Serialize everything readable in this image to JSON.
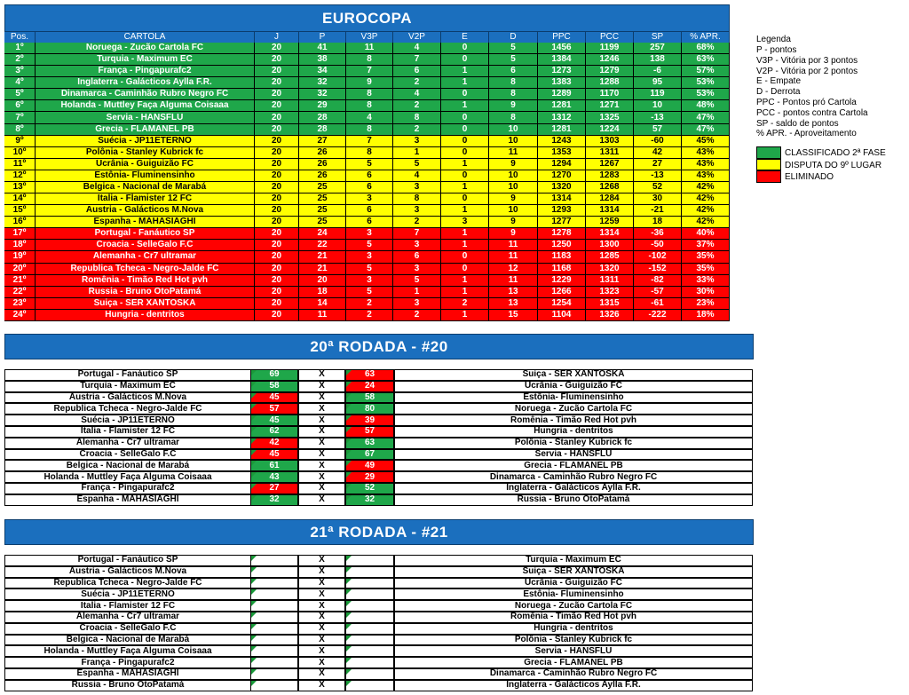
{
  "standings": {
    "title": "EUROCOPA",
    "columns": [
      "Pos.",
      "CARTOLA",
      "J",
      "P",
      "V3P",
      "V2P",
      "E",
      "D",
      "PPC",
      "PCC",
      "SP",
      "% APR."
    ],
    "rows": [
      {
        "color": "#1fa74a",
        "cells": [
          "1º",
          "Noruega - Zucão Cartola FC",
          20,
          41,
          11,
          4,
          0,
          5,
          1456,
          1199,
          257,
          "68%"
        ]
      },
      {
        "color": "#1fa74a",
        "cells": [
          "2º",
          "Turquia - Maximum EC",
          20,
          38,
          8,
          7,
          0,
          5,
          1384,
          1246,
          138,
          "63%"
        ]
      },
      {
        "color": "#1fa74a",
        "cells": [
          "3º",
          "França - Pingapurafc2",
          20,
          34,
          7,
          6,
          1,
          6,
          1273,
          1279,
          -6,
          "57%"
        ]
      },
      {
        "color": "#1fa74a",
        "cells": [
          "4º",
          "Inglaterra - Galácticos Aylla F.R.",
          20,
          32,
          9,
          2,
          1,
          8,
          1383,
          1288,
          95,
          "53%"
        ]
      },
      {
        "color": "#1fa74a",
        "cells": [
          "5º",
          "Dinamarca - Caminhão Rubro Negro FC",
          20,
          32,
          8,
          4,
          0,
          8,
          1289,
          1170,
          119,
          "53%"
        ]
      },
      {
        "color": "#1fa74a",
        "cells": [
          "6º",
          "Holanda - Muttley Faça Alguma Coisaaa",
          20,
          29,
          8,
          2,
          1,
          9,
          1281,
          1271,
          10,
          "48%"
        ]
      },
      {
        "color": "#1fa74a",
        "cells": [
          "7º",
          "Servia - HANSFLU",
          20,
          28,
          4,
          8,
          0,
          8,
          1312,
          1325,
          -13,
          "47%"
        ]
      },
      {
        "color": "#1fa74a",
        "cells": [
          "8º",
          "Grecia - FLAMANEL PB",
          20,
          28,
          8,
          2,
          0,
          10,
          1281,
          1224,
          57,
          "47%"
        ]
      },
      {
        "color": "#ffff00",
        "cells": [
          "9º",
          "Suécia - JP11ETERNO",
          20,
          27,
          7,
          3,
          0,
          10,
          1243,
          1303,
          -60,
          "45%"
        ]
      },
      {
        "color": "#ffff00",
        "cells": [
          "10º",
          "Polônia - Stanley Kubrick fc",
          20,
          26,
          8,
          1,
          0,
          11,
          1353,
          1311,
          42,
          "43%"
        ]
      },
      {
        "color": "#ffff00",
        "cells": [
          "11º",
          "Ucrânia - Guiguizão FC",
          20,
          26,
          5,
          5,
          1,
          9,
          1294,
          1267,
          27,
          "43%"
        ]
      },
      {
        "color": "#ffff00",
        "cells": [
          "12º",
          "Estônia- Fluminensinho",
          20,
          26,
          6,
          4,
          0,
          10,
          1270,
          1283,
          -13,
          "43%"
        ]
      },
      {
        "color": "#ffff00",
        "cells": [
          "13º",
          "Belgica - Nacional de Marabá",
          20,
          25,
          6,
          3,
          1,
          10,
          1320,
          1268,
          52,
          "42%"
        ]
      },
      {
        "color": "#ffff00",
        "cells": [
          "14º",
          "Italia - Flamister 12 FC",
          20,
          25,
          3,
          8,
          0,
          9,
          1314,
          1284,
          30,
          "42%"
        ]
      },
      {
        "color": "#ffff00",
        "cells": [
          "15º",
          "Austria - Galácticos M.Nova",
          20,
          25,
          6,
          3,
          1,
          10,
          1293,
          1314,
          -21,
          "42%"
        ]
      },
      {
        "color": "#ffff00",
        "cells": [
          "16º",
          "Espanha - MAHASIAGHI",
          20,
          25,
          6,
          2,
          3,
          9,
          1277,
          1259,
          18,
          "42%"
        ]
      },
      {
        "color": "#ff0000",
        "cells": [
          "17º",
          "Portugal - Fanáutico SP",
          20,
          24,
          3,
          7,
          1,
          9,
          1278,
          1314,
          -36,
          "40%"
        ]
      },
      {
        "color": "#ff0000",
        "cells": [
          "18º",
          "Croacia - SelleGalo F.C",
          20,
          22,
          5,
          3,
          1,
          11,
          1250,
          1300,
          -50,
          "37%"
        ]
      },
      {
        "color": "#ff0000",
        "cells": [
          "19º",
          "Alemanha - Cr7 ultramar",
          20,
          21,
          3,
          6,
          0,
          11,
          1183,
          1285,
          -102,
          "35%"
        ]
      },
      {
        "color": "#ff0000",
        "cells": [
          "20º",
          "Republica Tcheca - Negro-Jalde FC",
          20,
          21,
          5,
          3,
          0,
          12,
          1168,
          1320,
          -152,
          "35%"
        ]
      },
      {
        "color": "#ff0000",
        "cells": [
          "21º",
          "Romênia - Timão Red Hot pvh",
          20,
          20,
          3,
          5,
          1,
          11,
          1229,
          1311,
          -82,
          "33%"
        ]
      },
      {
        "color": "#ff0000",
        "cells": [
          "22º",
          "Russia - Bruno OtoPatamá",
          20,
          18,
          5,
          1,
          1,
          13,
          1266,
          1323,
          -57,
          "30%"
        ]
      },
      {
        "color": "#ff0000",
        "cells": [
          "23º",
          "Suiça - SER XANTOSKA",
          20,
          14,
          2,
          3,
          2,
          13,
          1254,
          1315,
          -61,
          "23%"
        ]
      },
      {
        "color": "#ff0000",
        "cells": [
          "24º",
          "Hungria - dentritos",
          20,
          11,
          2,
          2,
          1,
          15,
          1104,
          1326,
          -222,
          "18%"
        ]
      }
    ]
  },
  "legend": {
    "title": "Legenda",
    "items": [
      "P - pontos",
      "V3P - Vitória por 3 pontos",
      "V2P - Vitória por 2 pontos",
      "E - Empate",
      "D - Derrota",
      "PPC - Pontos pró Cartola",
      "PCC - pontos contra Cartola",
      "SP - saldo de pontos",
      "% APR. - Aproveitamento"
    ],
    "zones": [
      {
        "label": "CLASSIFICADO 2ª FASE",
        "color": "#1fa74a"
      },
      {
        "label": "DISPUTA DO 9º LUGAR",
        "color": "#ffff00"
      },
      {
        "label": "ELIMINADO",
        "color": "#ff0000"
      }
    ]
  },
  "rounds": [
    {
      "title": "20ª RODADA - #20",
      "separator": "X",
      "matches": [
        {
          "home": "Portugal - Fanáutico SP",
          "home_score": 69,
          "away_score": 63,
          "away": "Suiça - SER XANTOSKA"
        },
        {
          "home": "Turquia - Maximum EC",
          "home_score": 58,
          "away_score": 24,
          "away": "Ucrânia - Guiguizão FC"
        },
        {
          "home": "Austria - Galácticos M.Nova",
          "home_score": 45,
          "away_score": 58,
          "away": "Estônia- Fluminensinho"
        },
        {
          "home": "Republica Tcheca - Negro-Jalde FC",
          "home_score": 57,
          "away_score": 80,
          "away": "Noruega - Zucão Cartola FC"
        },
        {
          "home": "Suécia - JP11ETERNO",
          "home_score": 45,
          "away_score": 39,
          "away": "Romênia - Timão Red Hot pvh"
        },
        {
          "home": "Italia - Flamister 12 FC",
          "home_score": 62,
          "away_score": 57,
          "away": "Hungria - dentritos"
        },
        {
          "home": "Alemanha - Cr7 ultramar",
          "home_score": 42,
          "away_score": 63,
          "away": "Polônia - Stanley Kubrick fc"
        },
        {
          "home": "Croacia - SelleGalo F.C",
          "home_score": 45,
          "away_score": 67,
          "away": "Servia - HANSFLU"
        },
        {
          "home": "Belgica - Nacional de Marabá",
          "home_score": 61,
          "away_score": 49,
          "away": "Grecia - FLAMANEL PB"
        },
        {
          "home": "Holanda - Muttley Faça Alguma Coisaaa",
          "home_score": 43,
          "away_score": 29,
          "away": "Dinamarca - Caminhão Rubro Negro FC"
        },
        {
          "home": "França - Pingapurafc2",
          "home_score": 27,
          "away_score": 52,
          "away": "Inglaterra - Galácticos Aylla F.R."
        },
        {
          "home": "Espanha - MAHASIAGHI",
          "home_score": 32,
          "away_score": 32,
          "away": "Russia - Bruno OtoPatamá"
        }
      ]
    },
    {
      "title": "21ª RODADA - #21",
      "separator": "X",
      "matches": [
        {
          "home": "Portugal - Fanáutico SP",
          "away": "Turquia - Maximum EC"
        },
        {
          "home": "Austria - Galácticos M.Nova",
          "away": "Suiça - SER XANTOSKA"
        },
        {
          "home": "Republica Tcheca - Negro-Jalde FC",
          "away": "Ucrânia - Guiguizão FC"
        },
        {
          "home": "Suécia - JP11ETERNO",
          "away": "Estônia- Fluminensinho"
        },
        {
          "home": "Italia - Flamister 12 FC",
          "away": "Noruega - Zucão Cartola FC"
        },
        {
          "home": "Alemanha - Cr7 ultramar",
          "away": "Romênia - Timão Red Hot pvh"
        },
        {
          "home": "Croacia - SelleGalo F.C",
          "away": "Hungria - dentritos"
        },
        {
          "home": "Belgica - Nacional de Marabá",
          "away": "Polônia - Stanley Kubrick fc"
        },
        {
          "home": "Holanda - Muttley Faça Alguma Coisaaa",
          "away": "Servia - HANSFLU"
        },
        {
          "home": "França - Pingapurafc2",
          "away": "Grecia - FLAMANEL PB"
        },
        {
          "home": "Espanha - MAHASIAGHI",
          "away": "Dinamarca - Caminhão Rubro Negro FC"
        },
        {
          "home": "Russia - Bruno OtoPatamá",
          "away": "Inglaterra - Galácticos Aylla F.R."
        }
      ]
    }
  ]
}
